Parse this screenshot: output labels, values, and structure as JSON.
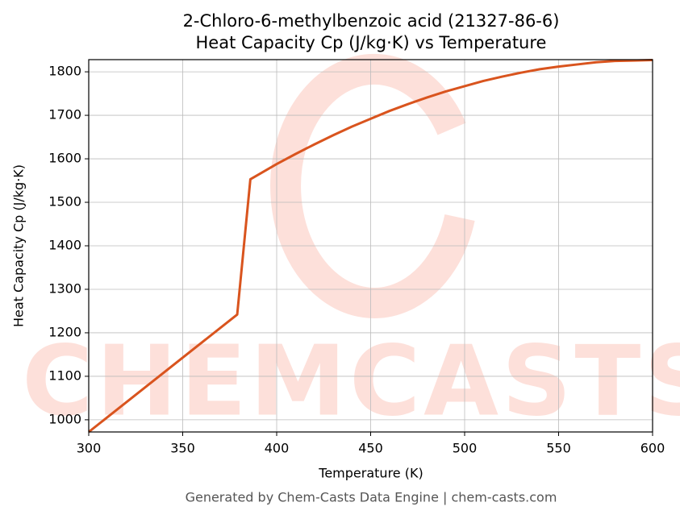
{
  "chart_data": {
    "type": "line",
    "title": "2-Chloro-6-methylbenzoic acid (21327-86-6)",
    "subtitle": "Heat Capacity Cp (J/kg·K) vs Temperature",
    "x_label": "Temperature (K)",
    "y_label": "Heat Capacity Cp (J/kg·K)",
    "footer": "Generated by Chem-Casts Data Engine | chem-casts.com",
    "watermark": "CHEMCASTS",
    "x": [
      300,
      379,
      386,
      390,
      400,
      410,
      420,
      430,
      440,
      450,
      460,
      470,
      480,
      490,
      500,
      510,
      520,
      530,
      540,
      550,
      560,
      570,
      580,
      590,
      600
    ],
    "series": [
      {
        "name": "Cp",
        "color": "#d9541e",
        "values": [
          972,
          1242,
          1553,
          1563,
          1588,
          1611,
          1633,
          1654,
          1674,
          1692,
          1710,
          1726,
          1741,
          1755,
          1767,
          1779,
          1789,
          1798,
          1806,
          1812,
          1817,
          1822,
          1825,
          1826,
          1827
        ]
      }
    ],
    "xlim": [
      300,
      600
    ],
    "ylim": [
      972,
      1828
    ],
    "xticks": [
      300,
      350,
      400,
      450,
      500,
      550,
      600
    ],
    "yticks": [
      1000,
      1100,
      1200,
      1300,
      1400,
      1500,
      1600,
      1700,
      1800
    ],
    "grid": true
  }
}
